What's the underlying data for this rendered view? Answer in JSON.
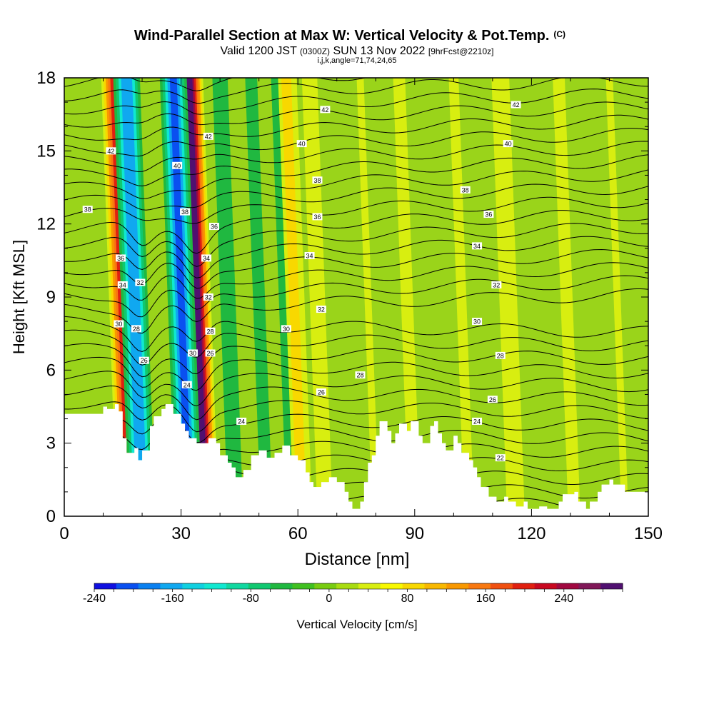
{
  "chart_data": {
    "type": "heatmap",
    "title": "Wind-Parallel Section at Max W: Vertical Velocity & Pot.Temp.",
    "title_mark": "(C)",
    "subtitle_parts": [
      "Valid 1200 JST ",
      "(0300Z)",
      " SUN 13 Nov 2022 ",
      "[9hrFcst@2210z]"
    ],
    "subtitle2": "i,j,k,angle=71,74,24,65",
    "xlabel": "Distance [nm]",
    "ylabel": "Height [Kft MSL]",
    "xlim": [
      0,
      150
    ],
    "ylim": [
      0,
      18
    ],
    "xticks": [
      "0",
      "30",
      "60",
      "90",
      "120",
      "150"
    ],
    "yticks": [
      "0",
      "3",
      "6",
      "9",
      "12",
      "15",
      "18"
    ],
    "colorbar": {
      "label": "Vertical Velocity [cm/s]",
      "range": [
        -240,
        300
      ],
      "ticks": [
        "-240",
        "-160",
        "-80",
        "0",
        "80",
        "160",
        "240"
      ],
      "colors": [
        "#1010e0",
        "#0a50f0",
        "#0a80f0",
        "#10a8f0",
        "#10d0e0",
        "#10e8d0",
        "#10d8a0",
        "#10c870",
        "#20b840",
        "#40c020",
        "#78cc10",
        "#a8dc10",
        "#d8ee10",
        "#f8f800",
        "#f8d800",
        "#f8b800",
        "#f89800",
        "#f87810",
        "#f05010",
        "#e02010",
        "#c80820",
        "#a00840",
        "#801858",
        "#501070"
      ]
    },
    "updrafts": [
      {
        "x": 17,
        "w": 220
      },
      {
        "x": 36,
        "w": 280
      },
      {
        "x": 61,
        "w": 90
      },
      {
        "x": 67,
        "w": 60
      },
      {
        "x": 80,
        "w": 40
      },
      {
        "x": 90,
        "w": 50
      },
      {
        "x": 104,
        "w": 45
      },
      {
        "x": 116,
        "w": 70
      },
      {
        "x": 131,
        "w": 50
      },
      {
        "x": 144,
        "w": 40
      }
    ],
    "downdrafts": [
      {
        "x": 20,
        "w": -190
      },
      {
        "x": 32,
        "w": -200
      },
      {
        "x": 44,
        "w": -60
      },
      {
        "x": 52,
        "w": -50
      },
      {
        "x": 58,
        "w": -40
      }
    ],
    "theta_labels": [
      {
        "v": "42",
        "x": 12,
        "y": 15.0
      },
      {
        "v": "38",
        "x": 6,
        "y": 12.6
      },
      {
        "v": "36",
        "x": 14.5,
        "y": 10.6
      },
      {
        "v": "34",
        "x": 15,
        "y": 9.5
      },
      {
        "v": "32",
        "x": 19.5,
        "y": 9.6
      },
      {
        "v": "30",
        "x": 14,
        "y": 7.9
      },
      {
        "v": "28",
        "x": 18.5,
        "y": 7.7
      },
      {
        "v": "26",
        "x": 20.5,
        "y": 6.4
      },
      {
        "v": "42",
        "x": 37,
        "y": 15.6
      },
      {
        "v": "40",
        "x": 29,
        "y": 14.4
      },
      {
        "v": "38",
        "x": 31,
        "y": 12.5
      },
      {
        "v": "36",
        "x": 38.5,
        "y": 11.9
      },
      {
        "v": "34",
        "x": 36.5,
        "y": 10.6
      },
      {
        "v": "32",
        "x": 37,
        "y": 9.0
      },
      {
        "v": "30",
        "x": 33,
        "y": 6.7
      },
      {
        "v": "28",
        "x": 37.5,
        "y": 7.6
      },
      {
        "v": "26",
        "x": 37.5,
        "y": 6.7
      },
      {
        "v": "24",
        "x": 31.5,
        "y": 5.4
      },
      {
        "v": "24",
        "x": 45.5,
        "y": 3.9
      },
      {
        "v": "42",
        "x": 67,
        "y": 16.7
      },
      {
        "v": "40",
        "x": 61,
        "y": 15.3
      },
      {
        "v": "38",
        "x": 65,
        "y": 13.8
      },
      {
        "v": "36",
        "x": 65,
        "y": 12.3
      },
      {
        "v": "34",
        "x": 63,
        "y": 10.7
      },
      {
        "v": "32",
        "x": 66,
        "y": 8.5
      },
      {
        "v": "30",
        "x": 57,
        "y": 7.7
      },
      {
        "v": "28",
        "x": 76,
        "y": 5.8
      },
      {
        "v": "26",
        "x": 66,
        "y": 5.1
      },
      {
        "v": "42",
        "x": 116,
        "y": 16.9
      },
      {
        "v": "40",
        "x": 114,
        "y": 15.3
      },
      {
        "v": "38",
        "x": 103,
        "y": 13.4
      },
      {
        "v": "36",
        "x": 109,
        "y": 12.4
      },
      {
        "v": "34",
        "x": 106,
        "y": 11.1
      },
      {
        "v": "32",
        "x": 111,
        "y": 9.5
      },
      {
        "v": "30",
        "x": 106,
        "y": 8.0
      },
      {
        "v": "28",
        "x": 112,
        "y": 6.6
      },
      {
        "v": "26",
        "x": 110,
        "y": 4.8
      },
      {
        "v": "24",
        "x": 106,
        "y": 3.9
      },
      {
        "v": "22",
        "x": 112,
        "y": 2.4
      }
    ],
    "terrain": [
      [
        0,
        4.2
      ],
      [
        10,
        4.2
      ],
      [
        10,
        4.5
      ],
      [
        11,
        4.5
      ],
      [
        11,
        4.4
      ],
      [
        13,
        4.4
      ],
      [
        13,
        4.6
      ],
      [
        14,
        4.6
      ],
      [
        14,
        4.3
      ],
      [
        15,
        4.3
      ],
      [
        15,
        3.2
      ],
      [
        16,
        3.2
      ],
      [
        16,
        2.6
      ],
      [
        18,
        2.6
      ],
      [
        18,
        2.8
      ],
      [
        19,
        2.8
      ],
      [
        19,
        2.3
      ],
      [
        20,
        2.3
      ],
      [
        20,
        2.7
      ],
      [
        22,
        2.7
      ],
      [
        22,
        3.7
      ],
      [
        23,
        3.7
      ],
      [
        23,
        4.1
      ],
      [
        25,
        4.1
      ],
      [
        25,
        4.4
      ],
      [
        26,
        4.4
      ],
      [
        26,
        4.6
      ],
      [
        28,
        4.6
      ],
      [
        28,
        4.2
      ],
      [
        30,
        4.2
      ],
      [
        30,
        3.8
      ],
      [
        31,
        3.8
      ],
      [
        31,
        3.5
      ],
      [
        32,
        3.5
      ],
      [
        32,
        3.2
      ],
      [
        34,
        3.2
      ],
      [
        34,
        3.0
      ],
      [
        37,
        3.0
      ],
      [
        37,
        3.2
      ],
      [
        39,
        3.2
      ],
      [
        39,
        3.0
      ],
      [
        40,
        3.0
      ],
      [
        40,
        2.5
      ],
      [
        42,
        2.5
      ],
      [
        42,
        2.2
      ],
      [
        43,
        2.2
      ],
      [
        43,
        2.0
      ],
      [
        44,
        2.0
      ],
      [
        44,
        1.6
      ],
      [
        46,
        1.6
      ],
      [
        46,
        1.9
      ],
      [
        48,
        1.9
      ],
      [
        48,
        2.5
      ],
      [
        50,
        2.5
      ],
      [
        50,
        2.7
      ],
      [
        52,
        2.7
      ],
      [
        52,
        2.4
      ],
      [
        54,
        2.4
      ],
      [
        54,
        2.6
      ],
      [
        56,
        2.6
      ],
      [
        56,
        2.9
      ],
      [
        58,
        2.9
      ],
      [
        58,
        2.5
      ],
      [
        60,
        2.5
      ],
      [
        60,
        2.3
      ],
      [
        62,
        2.3
      ],
      [
        62,
        1.8
      ],
      [
        63,
        1.8
      ],
      [
        63,
        1.4
      ],
      [
        64,
        1.4
      ],
      [
        64,
        1.2
      ],
      [
        66,
        1.2
      ],
      [
        66,
        1.4
      ],
      [
        68,
        1.4
      ],
      [
        68,
        1.6
      ],
      [
        70,
        1.6
      ],
      [
        70,
        1.4
      ],
      [
        72,
        1.4
      ],
      [
        72,
        1.0
      ],
      [
        73,
        1.0
      ],
      [
        73,
        0.6
      ],
      [
        74,
        0.6
      ],
      [
        74,
        0.3
      ],
      [
        76,
        0.3
      ],
      [
        76,
        0.6
      ],
      [
        77,
        0.6
      ],
      [
        77,
        1.4
      ],
      [
        78,
        1.4
      ],
      [
        78,
        2.2
      ],
      [
        79,
        2.2
      ],
      [
        79,
        2.5
      ],
      [
        80,
        2.5
      ],
      [
        80,
        3.3
      ],
      [
        81,
        3.3
      ],
      [
        81,
        3.9
      ],
      [
        83,
        3.9
      ],
      [
        83,
        3.5
      ],
      [
        84,
        3.5
      ],
      [
        84,
        3.0
      ],
      [
        85,
        3.0
      ],
      [
        85,
        3.4
      ],
      [
        86,
        3.4
      ],
      [
        86,
        3.8
      ],
      [
        88,
        3.8
      ],
      [
        88,
        3.5
      ],
      [
        89,
        3.5
      ],
      [
        89,
        3.9
      ],
      [
        91,
        3.9
      ],
      [
        91,
        3.3
      ],
      [
        92,
        3.3
      ],
      [
        92,
        3.0
      ],
      [
        94,
        3.0
      ],
      [
        94,
        3.7
      ],
      [
        95,
        3.7
      ],
      [
        95,
        3.9
      ],
      [
        96,
        3.9
      ],
      [
        96,
        3.4
      ],
      [
        97,
        3.4
      ],
      [
        97,
        3.0
      ],
      [
        98,
        3.0
      ],
      [
        98,
        2.7
      ],
      [
        100,
        2.7
      ],
      [
        100,
        3.3
      ],
      [
        101,
        3.3
      ],
      [
        101,
        3.0
      ],
      [
        102,
        3.0
      ],
      [
        102,
        2.6
      ],
      [
        104,
        2.6
      ],
      [
        104,
        2.3
      ],
      [
        105,
        2.3
      ],
      [
        105,
        2.0
      ],
      [
        106,
        2.0
      ],
      [
        106,
        1.6
      ],
      [
        107,
        1.6
      ],
      [
        107,
        1.2
      ],
      [
        109,
        1.2
      ],
      [
        109,
        0.8
      ],
      [
        111,
        0.8
      ],
      [
        111,
        0.6
      ],
      [
        113,
        0.6
      ],
      [
        113,
        0.8
      ],
      [
        114,
        0.8
      ],
      [
        114,
        0.6
      ],
      [
        116,
        0.6
      ],
      [
        116,
        0.4
      ],
      [
        118,
        0.4
      ],
      [
        118,
        0.6
      ],
      [
        119,
        0.6
      ],
      [
        119,
        0.3
      ],
      [
        122,
        0.3
      ],
      [
        122,
        0.4
      ],
      [
        124,
        0.4
      ],
      [
        124,
        0.3
      ],
      [
        127,
        0.3
      ],
      [
        127,
        0.6
      ],
      [
        128,
        0.6
      ],
      [
        128,
        0.9
      ],
      [
        131,
        0.9
      ],
      [
        131,
        1.0
      ],
      [
        132,
        1.0
      ],
      [
        132,
        0.6
      ],
      [
        134,
        0.6
      ],
      [
        134,
        0.3
      ],
      [
        135,
        0.3
      ],
      [
        135,
        0.6
      ],
      [
        137,
        0.6
      ],
      [
        137,
        1.0
      ],
      [
        138,
        1.0
      ],
      [
        138,
        1.3
      ],
      [
        140,
        1.3
      ],
      [
        140,
        1.5
      ],
      [
        141,
        1.5
      ],
      [
        141,
        1.3
      ],
      [
        144,
        1.3
      ],
      [
        144,
        1.0
      ],
      [
        150,
        1.0
      ]
    ]
  }
}
